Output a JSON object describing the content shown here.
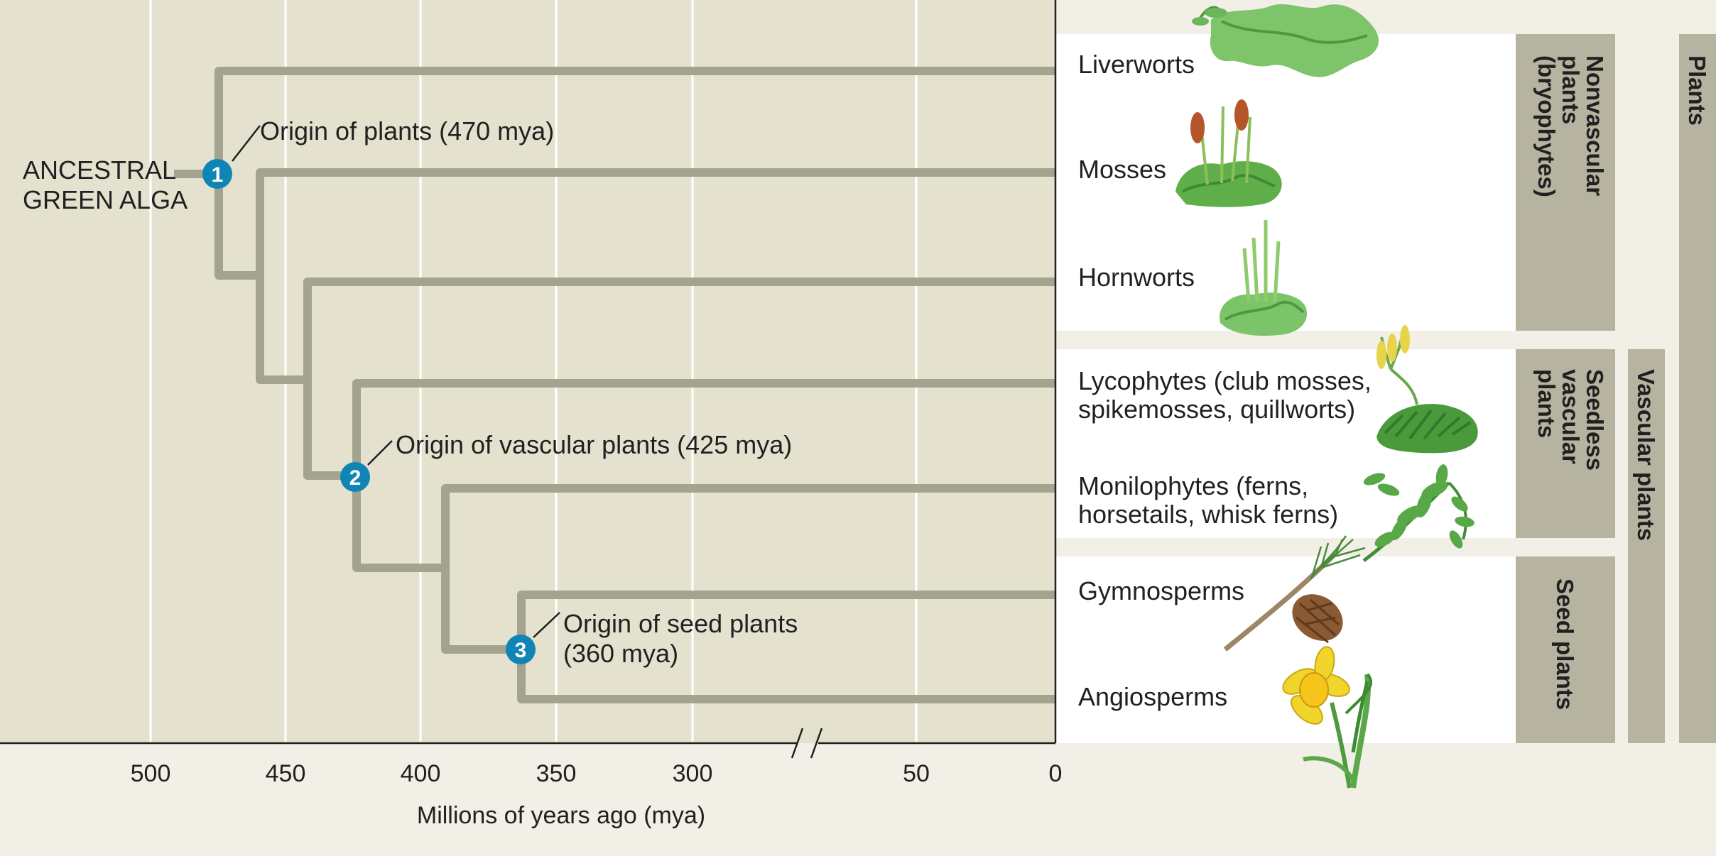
{
  "ancestor": {
    "line1": "ANCESTRAL",
    "line2": "GREEN ALGA"
  },
  "taxa": [
    {
      "label_lines": [
        "Liverworts"
      ]
    },
    {
      "label_lines": [
        "Mosses"
      ]
    },
    {
      "label_lines": [
        "Hornworts"
      ]
    },
    {
      "label_lines": [
        "Lycophytes (club mosses,",
        "spikemosses, quillworts)"
      ]
    },
    {
      "label_lines": [
        "Monilophytes (ferns,",
        "horsetails, whisk ferns)"
      ]
    },
    {
      "label_lines": [
        "Gymnosperms"
      ]
    },
    {
      "label_lines": [
        "Angiosperms"
      ]
    }
  ],
  "events": [
    {
      "number": "1",
      "lines": [
        "Origin of plants (470 mya)"
      ]
    },
    {
      "number": "2",
      "lines": [
        "Origin of vascular plants (425 mya)"
      ]
    },
    {
      "number": "3",
      "lines": [
        "Origin of seed plants",
        "(360 mya)"
      ]
    }
  ],
  "axis": {
    "title": "Millions of years ago (mya)",
    "ticks": [
      "500",
      "450",
      "400",
      "350",
      "300",
      "50",
      "0"
    ]
  },
  "groups": {
    "nonvascular": [
      "Nonvascular",
      "plants",
      "(bryophytes)"
    ],
    "seedless": [
      "Seedless",
      "vascular",
      "plants"
    ],
    "seed": [
      "Seed plants"
    ],
    "vascular": [
      "Vascular plants"
    ],
    "plants": [
      "Plants"
    ]
  },
  "illustrations": [
    "liverwort-plant",
    "moss-plant",
    "hornwort-plant",
    "lycophyte-plant",
    "fern-frond",
    "pine-branch-with-cone",
    "daffodil-flower"
  ],
  "colors": {
    "tree_background": "#e5e1cf",
    "branch": "#a3a38f",
    "node_circle": "#0f85b5",
    "group_bar": "#b6b4a1",
    "page": "#f2efe6"
  }
}
